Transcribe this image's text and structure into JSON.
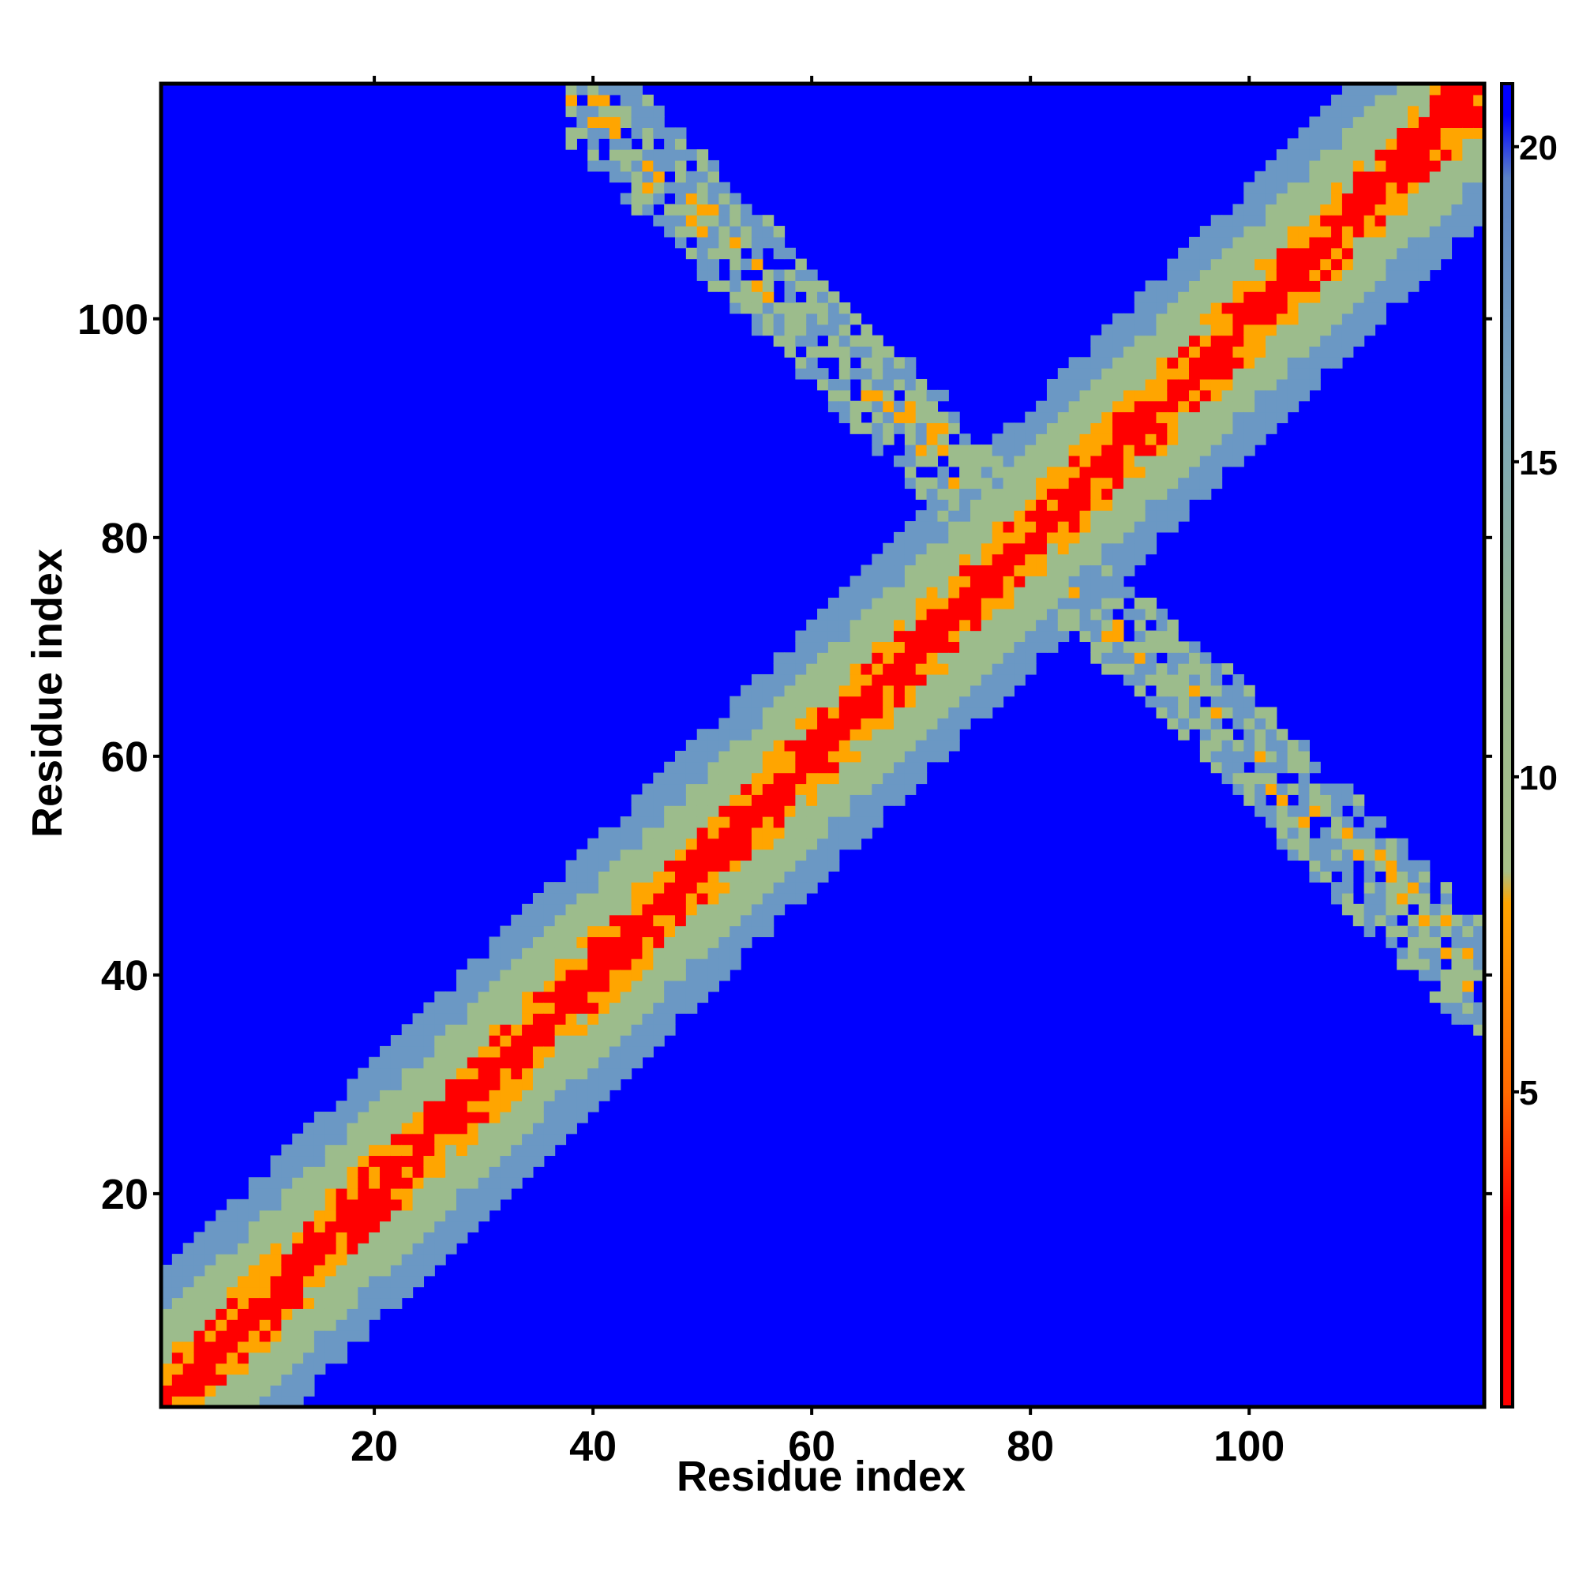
{
  "chart_data": {
    "type": "heatmap",
    "xlabel": "Residue index",
    "ylabel": "Residue index",
    "x_ticks": [
      20,
      40,
      60,
      80,
      100
    ],
    "y_ticks": [
      20,
      40,
      60,
      80,
      100
    ],
    "xlim": [
      1,
      121
    ],
    "ylim": [
      1,
      121
    ],
    "colorbar": {
      "ticks": [
        5,
        10,
        15,
        20
      ],
      "range": [
        0,
        21
      ],
      "stops": [
        {
          "value": 0,
          "color": "#ff0000"
        },
        {
          "value": 3,
          "color": "#ff0000"
        },
        {
          "value": 5,
          "color": "#ff6a00"
        },
        {
          "value": 8,
          "color": "#ffa500"
        },
        {
          "value": 8.5,
          "color": "#a8c088"
        },
        {
          "value": 12,
          "color": "#98b890"
        },
        {
          "value": 16,
          "color": "#7aa6bc"
        },
        {
          "value": 19.5,
          "color": "#5b82c6"
        },
        {
          "value": 20.5,
          "color": "#0000ff"
        },
        {
          "value": 21,
          "color": "#0000ff"
        }
      ]
    },
    "colors": {
      "background": "#0000ff",
      "diagonal": "#ff0000",
      "near": "#ffa500",
      "mid": "#9cbc8c",
      "far": "#6b98c4"
    },
    "features": [
      {
        "kind": "diagonal-band",
        "from": 1,
        "to": 121,
        "half_width": 13
      },
      {
        "kind": "anti-diagonal-band",
        "x_from": 38,
        "x_to": 80,
        "y_from": 121,
        "y_to": 80,
        "half_width": 5
      },
      {
        "kind": "anti-diagonal-band",
        "x_from": 80,
        "x_to": 121,
        "y_from": 80,
        "y_to": 40,
        "half_width": 5
      },
      {
        "kind": "cluster",
        "x": 13,
        "y": 13,
        "spread": 6
      },
      {
        "kind": "cluster",
        "x": 26,
        "y": 28,
        "spread": 6
      }
    ]
  }
}
